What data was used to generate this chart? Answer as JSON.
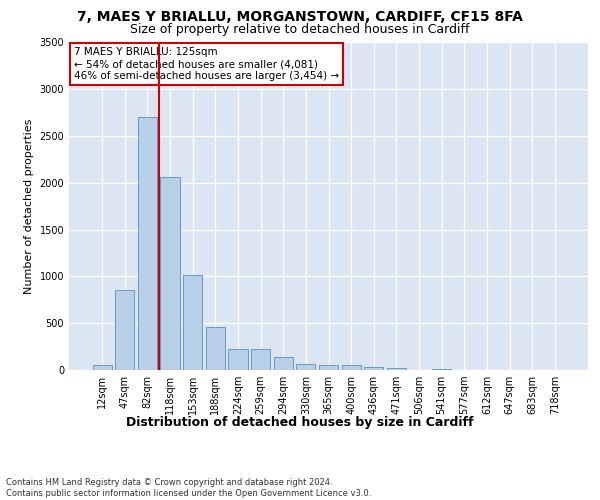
{
  "title1": "7, MAES Y BRIALLU, MORGANSTOWN, CARDIFF, CF15 8FA",
  "title2": "Size of property relative to detached houses in Cardiff",
  "xlabel": "Distribution of detached houses by size in Cardiff",
  "ylabel": "Number of detached properties",
  "categories": [
    "12sqm",
    "47sqm",
    "82sqm",
    "118sqm",
    "153sqm",
    "188sqm",
    "224sqm",
    "259sqm",
    "294sqm",
    "330sqm",
    "365sqm",
    "400sqm",
    "436sqm",
    "471sqm",
    "506sqm",
    "541sqm",
    "577sqm",
    "612sqm",
    "647sqm",
    "683sqm",
    "718sqm"
  ],
  "values": [
    55,
    850,
    2700,
    2060,
    1010,
    455,
    220,
    220,
    135,
    60,
    50,
    50,
    30,
    20,
    0,
    15,
    0,
    0,
    0,
    0,
    0
  ],
  "bar_color": "#b8cfe8",
  "bar_edge_color": "#6699cc",
  "background_color": "#dce6f2",
  "grid_color": "#ffffff",
  "vline_color": "#cc0000",
  "vline_bin_index": 2.5,
  "annotation_text": "7 MAES Y BRIALLU: 125sqm\n← 54% of detached houses are smaller (4,081)\n46% of semi-detached houses are larger (3,454) →",
  "annotation_box_edgecolor": "#cc0000",
  "annotation_bg": "#ffffff",
  "ylim_max": 3500,
  "yticks": [
    0,
    500,
    1000,
    1500,
    2000,
    2500,
    3000,
    3500
  ],
  "footnote": "Contains HM Land Registry data © Crown copyright and database right 2024.\nContains public sector information licensed under the Open Government Licence v3.0.",
  "title1_fontsize": 10,
  "title2_fontsize": 9,
  "xlabel_fontsize": 9,
  "ylabel_fontsize": 8,
  "tick_fontsize": 7,
  "annot_fontsize": 7.5,
  "footnote_fontsize": 6
}
